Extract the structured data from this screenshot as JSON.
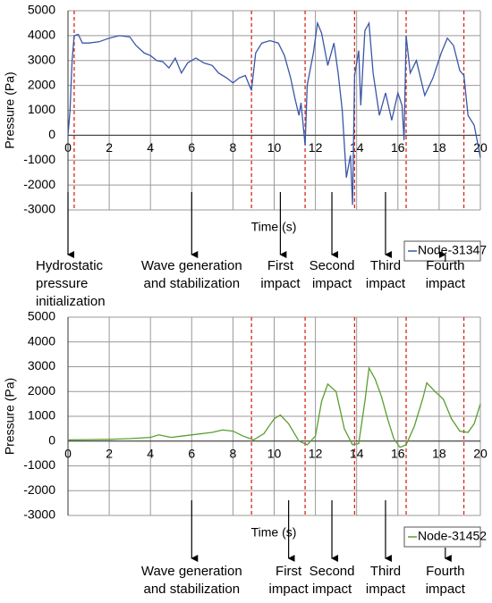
{
  "chart_data": [
    {
      "type": "line",
      "xlabel": "Time (s)",
      "ylabel": "Pressure (Pa)",
      "xlim": [
        0,
        20
      ],
      "ylim": [
        -3000,
        5000
      ],
      "xticks": [
        0,
        2,
        4,
        6,
        8,
        10,
        12,
        14,
        16,
        18,
        20
      ],
      "yticks": [
        -3000,
        -2000,
        -1000,
        0,
        1000,
        2000,
        3000,
        4000,
        5000
      ],
      "grid": true,
      "legend": "lower right",
      "series": [
        {
          "name": "Node-31347",
          "color": "#3a57a7",
          "x": [
            0,
            0.1,
            0.2,
            0.3,
            0.5,
            0.7,
            1,
            1.5,
            2,
            2.5,
            3,
            3.3,
            3.7,
            4,
            4.3,
            4.6,
            4.9,
            5.2,
            5.5,
            5.8,
            6.2,
            6.6,
            7,
            7.3,
            7.7,
            8,
            8.3,
            8.6,
            8.9,
            9.1,
            9.4,
            9.8,
            10.2,
            10.5,
            10.8,
            11,
            11.2,
            11.3,
            11.5,
            11.6,
            11.9,
            12.1,
            12.3,
            12.6,
            12.9,
            13.1,
            13.3,
            13.5,
            13.7,
            13.8,
            13.9,
            14.1,
            14.2,
            14.4,
            14.6,
            14.8,
            15.1,
            15.4,
            15.7,
            16,
            16.2,
            16.3,
            16.4,
            16.6,
            16.9,
            17.3,
            17.7,
            18.1,
            18.4,
            18.7,
            19,
            19.2,
            19.4,
            19.7,
            20
          ],
          "values": [
            0,
            1000,
            3000,
            4000,
            4050,
            3700,
            3700,
            3750,
            3900,
            4000,
            3950,
            3600,
            3300,
            3200,
            3000,
            2950,
            2700,
            3100,
            2500,
            2900,
            3100,
            2900,
            2800,
            2500,
            2300,
            2100,
            2300,
            2400,
            1800,
            3300,
            3700,
            3800,
            3700,
            3200,
            2300,
            1500,
            800,
            1300,
            -400,
            2000,
            3300,
            4500,
            4100,
            2800,
            3700,
            2500,
            1000,
            -1700,
            -800,
            -2800,
            2400,
            3400,
            1200,
            4200,
            4500,
            2500,
            800,
            1700,
            600,
            1700,
            1200,
            -200,
            4000,
            2500,
            3000,
            1600,
            2300,
            3300,
            3900,
            3600,
            2600,
            2400,
            800,
            400,
            -900
          ]
        }
      ],
      "markers": {
        "color": "#d9261c",
        "values": [
          0.3,
          8.9,
          11.5,
          13.9,
          16.4,
          19.2
        ]
      },
      "annotations": [
        {
          "text": [
            "Hydrostatic",
            "pressure",
            "initialization"
          ],
          "x": 0
        },
        {
          "text": [
            "Wave generation",
            "and stabilization"
          ],
          "x": 6
        },
        {
          "text": [
            "First",
            "impact"
          ],
          "x": 10.3
        },
        {
          "text": [
            "Second",
            "impact"
          ],
          "x": 12.8
        },
        {
          "text": [
            "Third",
            "impact"
          ],
          "x": 15.4
        },
        {
          "text": [
            "Fourth",
            "impact"
          ],
          "x": 18.3
        }
      ]
    },
    {
      "type": "line",
      "xlabel": "Time (s)",
      "ylabel": "Pressure (Pa)",
      "xlim": [
        0,
        20
      ],
      "ylim": [
        -3000,
        5000
      ],
      "xticks": [
        0,
        2,
        4,
        6,
        8,
        10,
        12,
        14,
        16,
        18,
        20
      ],
      "yticks": [
        -3000,
        -2000,
        -1000,
        0,
        1000,
        2000,
        3000,
        4000,
        5000
      ],
      "grid": true,
      "legend": "lower right",
      "series": [
        {
          "name": "Node-31452",
          "color": "#5a9e2f",
          "x": [
            0,
            1,
            2,
            3,
            4,
            4.4,
            5,
            5.5,
            6,
            7,
            7.5,
            8,
            8.5,
            9,
            9.5,
            10,
            10.3,
            10.7,
            11.2,
            11.6,
            12,
            12.3,
            12.6,
            13,
            13.4,
            13.8,
            14.1,
            14.4,
            14.6,
            14.9,
            15.2,
            15.5,
            15.8,
            16.1,
            16.4,
            16.8,
            17.2,
            17.4,
            17.8,
            18.2,
            18.6,
            19,
            19.4,
            19.7,
            20
          ],
          "values": [
            50,
            60,
            70,
            100,
            150,
            250,
            150,
            200,
            250,
            350,
            450,
            400,
            200,
            50,
            300,
            900,
            1050,
            700,
            0,
            -150,
            200,
            1600,
            2300,
            2000,
            500,
            -150,
            -100,
            1600,
            2950,
            2500,
            1800,
            900,
            100,
            -250,
            -150,
            600,
            1700,
            2350,
            2000,
            1700,
            900,
            400,
            350,
            700,
            1500
          ]
        }
      ],
      "markers": {
        "color": "#d9261c",
        "values": [
          8.9,
          11.5,
          13.9,
          16.4,
          19.2
        ]
      },
      "annotations": [
        {
          "text": [
            "Wave generation",
            "and stabilization"
          ],
          "x": 6
        },
        {
          "text": [
            "First",
            "impact"
          ],
          "x": 10.7
        },
        {
          "text": [
            "Second",
            "impact"
          ],
          "x": 12.8
        },
        {
          "text": [
            "Third",
            "impact"
          ],
          "x": 15.4
        },
        {
          "text": [
            "Fourth",
            "impact"
          ],
          "x": 18.3
        }
      ]
    }
  ]
}
